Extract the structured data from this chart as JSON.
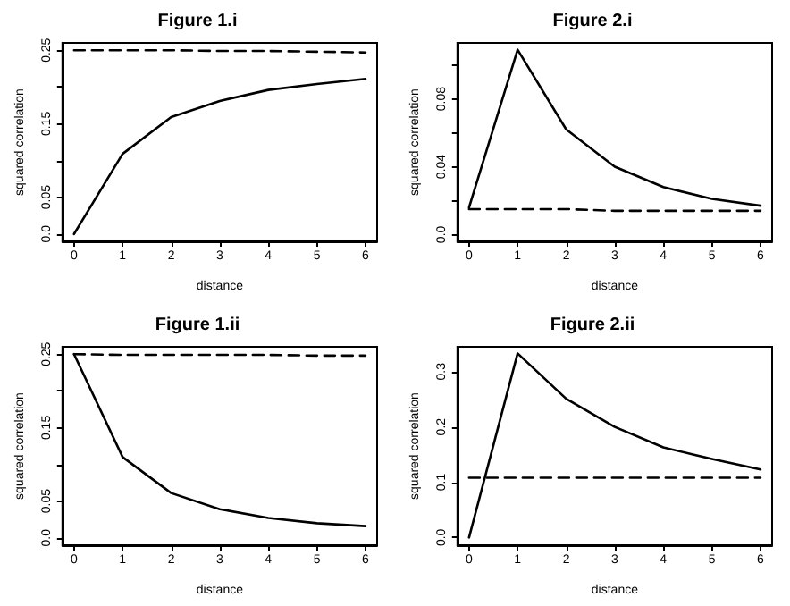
{
  "chart_data": [
    {
      "type": "line",
      "title": "Figure 1.i",
      "xlabel": "distance",
      "ylabel": "squared correlation",
      "x": [
        0,
        1,
        2,
        3,
        4,
        5,
        6
      ],
      "xlim": [
        -0.24,
        6.24
      ],
      "ylim": [
        -0.01,
        0.26
      ],
      "xticks": [
        0,
        1,
        2,
        3,
        4,
        5,
        6
      ],
      "yticks": [
        {
          "value": 0,
          "label": "0.0"
        },
        0.05,
        {
          "value": 0.1,
          "label": null
        },
        0.15,
        {
          "value": 0.2,
          "label": null
        },
        0.25
      ],
      "grid": false,
      "marker": "none",
      "series": [
        {
          "color": "#000000",
          "line_style": "solid",
          "values": [
            0.0,
            0.109,
            0.159,
            0.181,
            0.196,
            0.204,
            0.211
          ]
        },
        {
          "color": "#000000",
          "line_style": "dashed",
          "values": [
            0.25,
            0.25,
            0.25,
            0.249,
            0.249,
            0.248,
            0.247
          ]
        }
      ]
    },
    {
      "type": "line",
      "title": "Figure 2.i",
      "xlabel": "distance",
      "ylabel": "squared correlation",
      "x": [
        0,
        1,
        2,
        3,
        4,
        5,
        6
      ],
      "xlim": [
        -0.24,
        6.24
      ],
      "ylim": [
        -0.004,
        0.113
      ],
      "xticks": [
        0,
        1,
        2,
        3,
        4,
        5,
        6
      ],
      "yticks": [
        {
          "value": 0,
          "label": "0.0"
        },
        {
          "value": 0.02,
          "label": null
        },
        0.04,
        {
          "value": 0.06,
          "label": null
        },
        0.08,
        {
          "value": 0.1,
          "label": null
        }
      ],
      "grid": false,
      "marker": "none",
      "series": [
        {
          "color": "#000000",
          "line_style": "solid",
          "values": [
            0.016,
            0.109,
            0.062,
            0.04,
            0.028,
            0.021,
            0.017
          ]
        },
        {
          "color": "#000000",
          "line_style": "dashed",
          "values": [
            0.015,
            0.015,
            0.015,
            0.014,
            0.014,
            0.014,
            0.014
          ]
        }
      ]
    },
    {
      "type": "line",
      "title": "Figure 1.ii",
      "xlabel": "distance",
      "ylabel": "squared correlation",
      "x": [
        0,
        1,
        2,
        3,
        4,
        5,
        6
      ],
      "xlim": [
        -0.24,
        6.24
      ],
      "ylim": [
        -0.01,
        0.26
      ],
      "xticks": [
        0,
        1,
        2,
        3,
        4,
        5,
        6
      ],
      "yticks": [
        {
          "value": 0,
          "label": "0.0"
        },
        0.05,
        {
          "value": 0.1,
          "label": null
        },
        0.15,
        {
          "value": 0.2,
          "label": null
        },
        0.25
      ],
      "grid": false,
      "marker": "none",
      "series": [
        {
          "color": "#000000",
          "line_style": "solid",
          "values": [
            0.25,
            0.11,
            0.061,
            0.039,
            0.027,
            0.02,
            0.016
          ]
        },
        {
          "color": "#000000",
          "line_style": "dashed",
          "values": [
            0.25,
            0.249,
            0.249,
            0.249,
            0.249,
            0.248,
            0.248
          ]
        }
      ]
    },
    {
      "type": "line",
      "title": "Figure 2.ii",
      "xlabel": "distance",
      "ylabel": "squared correlation",
      "x": [
        0,
        1,
        2,
        3,
        4,
        5,
        6
      ],
      "xlim": [
        -0.24,
        6.24
      ],
      "ylim": [
        -0.014,
        0.345
      ],
      "xticks": [
        0,
        1,
        2,
        3,
        4,
        5,
        6
      ],
      "yticks": [
        {
          "value": 0,
          "label": "0.0"
        },
        0.1,
        0.2,
        0.3
      ],
      "grid": false,
      "marker": "none",
      "series": [
        {
          "color": "#000000",
          "line_style": "solid",
          "values": [
            0.0,
            0.333,
            0.251,
            0.2,
            0.163,
            0.142,
            0.123
          ]
        },
        {
          "color": "#000000",
          "line_style": "dashed",
          "values": [
            0.108,
            0.108,
            0.108,
            0.108,
            0.108,
            0.108,
            0.108
          ]
        }
      ]
    }
  ]
}
